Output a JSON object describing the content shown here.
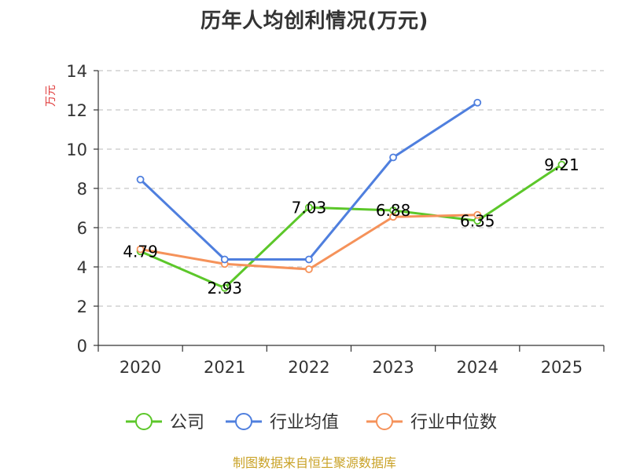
{
  "chart_data": {
    "type": "line",
    "title": "历年人均创利情况(万元)",
    "xlabel": "",
    "ylabel": "万元",
    "categories": [
      "2020",
      "2021",
      "2022",
      "2023",
      "2024",
      "2025"
    ],
    "ylim": [
      0,
      14
    ],
    "yticks": [
      0,
      2,
      4,
      6,
      8,
      10,
      12,
      14
    ],
    "grid": true,
    "legend_position": "bottom",
    "series": [
      {
        "name": "公司",
        "color": "#5cc72a",
        "values": [
          4.79,
          2.93,
          7.03,
          6.88,
          6.35,
          9.21
        ],
        "labels": [
          "4.79",
          "2.93",
          "7.03",
          "6.88",
          "6.35",
          "9.21"
        ]
      },
      {
        "name": "行业均值",
        "color": "#4f7fde",
        "values": [
          8.45,
          4.38,
          4.38,
          9.58,
          12.37,
          null
        ]
      },
      {
        "name": "行业中位数",
        "color": "#f5925a",
        "values": [
          4.9,
          4.15,
          3.88,
          6.55,
          6.65,
          null
        ]
      }
    ]
  },
  "source": "制图数据来自恒生聚源数据库"
}
